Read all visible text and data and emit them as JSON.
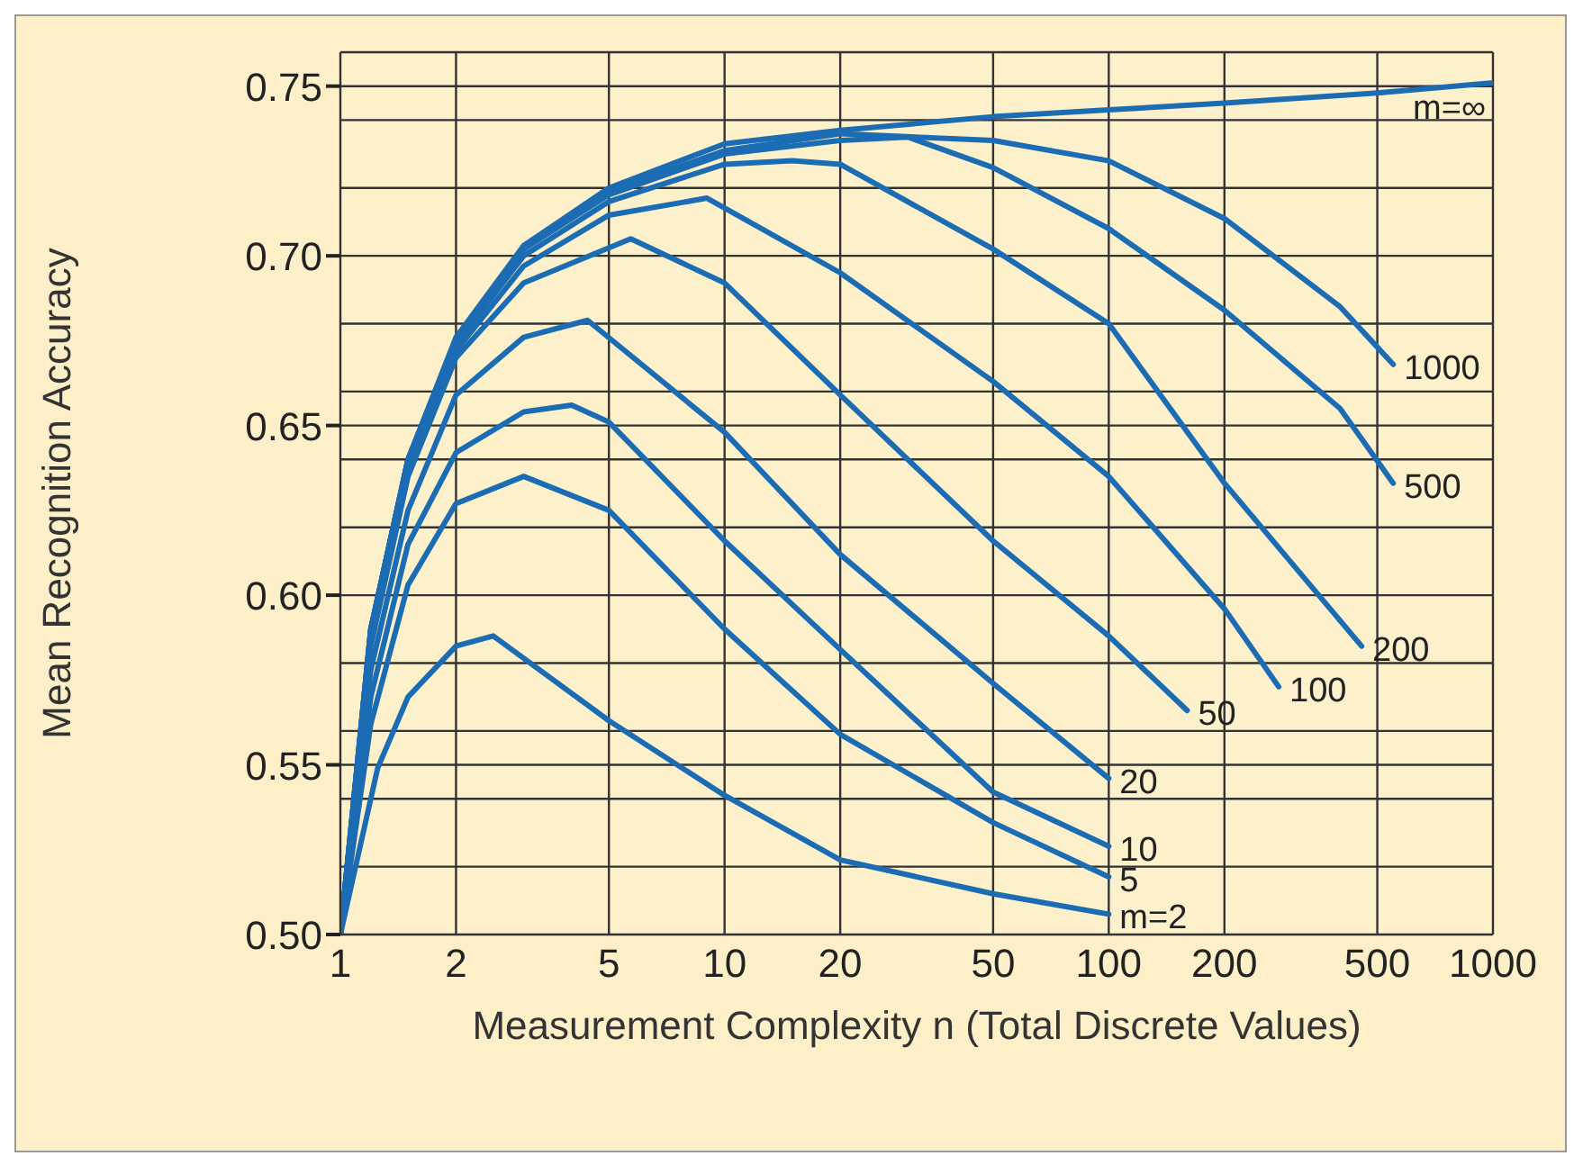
{
  "chart_data": {
    "type": "line",
    "xlabel": "Measurement Complexity n (Total Discrete Values)",
    "ylabel": "Mean Recognition Accuracy",
    "xlim": [
      1,
      1000
    ],
    "xticks": [
      1,
      2,
      5,
      10,
      20,
      50,
      100,
      200,
      500,
      1000
    ],
    "ylim": [
      0.5,
      0.76
    ],
    "yticks": [
      {
        "value": 0.5,
        "label": "0.50"
      },
      {
        "value": 0.52,
        "label": null
      },
      {
        "value": 0.54,
        "label": null
      },
      0.55,
      {
        "value": 0.56,
        "label": null
      },
      {
        "value": 0.58,
        "label": null
      },
      {
        "value": 0.6,
        "label": "0.60"
      },
      {
        "value": 0.62,
        "label": null
      },
      {
        "value": 0.64,
        "label": null
      },
      0.65,
      {
        "value": 0.66,
        "label": null
      },
      {
        "value": 0.68,
        "label": null
      },
      {
        "value": 0.7,
        "label": "0.70"
      },
      {
        "value": 0.72,
        "label": null
      },
      {
        "value": 0.74,
        "label": null
      },
      0.75,
      {
        "value": 0.76,
        "label": null
      }
    ],
    "log": "x",
    "grid": true,
    "legend": false,
    "marker": "none",
    "line_style": "solid",
    "series": [
      {
        "name": "m=∞",
        "color": "#1c6cb4",
        "x": [
          1,
          1.2,
          1.5,
          2,
          3,
          5,
          10,
          20,
          50,
          100,
          200,
          500,
          1000
        ],
        "values": [
          0.5,
          0.59,
          0.64,
          0.676,
          0.703,
          0.72,
          0.733,
          0.737,
          0.741,
          0.743,
          0.745,
          0.748,
          0.751
        ]
      },
      {
        "name": "1000",
        "color": "#1c6cb4",
        "x": [
          1,
          1.2,
          1.5,
          2,
          3,
          5,
          10,
          20,
          50,
          100,
          200,
          400,
          550
        ],
        "values": [
          0.5,
          0.59,
          0.64,
          0.675,
          0.702,
          0.719,
          0.731,
          0.736,
          0.734,
          0.728,
          0.711,
          0.685,
          0.668
        ]
      },
      {
        "name": "500",
        "color": "#1c6cb4",
        "x": [
          1,
          1.2,
          1.5,
          2,
          3,
          5,
          10,
          20,
          30,
          50,
          100,
          200,
          400,
          550
        ],
        "values": [
          0.5,
          0.59,
          0.64,
          0.675,
          0.702,
          0.718,
          0.73,
          0.734,
          0.735,
          0.726,
          0.708,
          0.684,
          0.655,
          0.633
        ]
      },
      {
        "name": "200",
        "color": "#1c6cb4",
        "x": [
          1,
          1.2,
          1.5,
          2,
          3,
          5,
          10,
          15,
          20,
          50,
          100,
          200,
          455
        ],
        "values": [
          0.5,
          0.59,
          0.64,
          0.674,
          0.7,
          0.716,
          0.727,
          0.728,
          0.727,
          0.702,
          0.68,
          0.633,
          0.585
        ]
      },
      {
        "name": "100",
        "color": "#1c6cb4",
        "x": [
          1,
          1.2,
          1.5,
          2,
          3,
          5,
          9,
          20,
          50,
          100,
          200,
          277
        ],
        "values": [
          0.5,
          0.588,
          0.638,
          0.672,
          0.697,
          0.712,
          0.717,
          0.695,
          0.663,
          0.635,
          0.596,
          0.573
        ]
      },
      {
        "name": "50",
        "color": "#1c6cb4",
        "x": [
          1,
          1.2,
          1.5,
          2,
          3,
          5.7,
          10,
          20,
          50,
          100,
          160
        ],
        "values": [
          0.5,
          0.585,
          0.635,
          0.67,
          0.692,
          0.705,
          0.692,
          0.659,
          0.616,
          0.588,
          0.566
        ]
      },
      {
        "name": "20",
        "color": "#1c6cb4",
        "x": [
          1,
          1.2,
          1.5,
          2,
          3,
          4.4,
          10,
          20,
          50,
          100
        ],
        "values": [
          0.5,
          0.578,
          0.625,
          0.659,
          0.676,
          0.681,
          0.648,
          0.612,
          0.574,
          0.546
        ]
      },
      {
        "name": "10",
        "color": "#1c6cb4",
        "x": [
          1,
          1.2,
          1.5,
          2,
          3,
          4,
          5,
          10,
          20,
          50,
          100
        ],
        "values": [
          0.5,
          0.57,
          0.615,
          0.642,
          0.654,
          0.656,
          0.651,
          0.616,
          0.584,
          0.542,
          0.526
        ]
      },
      {
        "name": "5",
        "color": "#1c6cb4",
        "x": [
          1,
          1.2,
          1.5,
          2,
          3,
          5,
          10,
          20,
          50,
          100
        ],
        "values": [
          0.5,
          0.562,
          0.603,
          0.627,
          0.635,
          0.625,
          0.59,
          0.559,
          0.533,
          0.517
        ]
      },
      {
        "name": "m=2",
        "color": "#1c6cb4",
        "x": [
          1,
          1.25,
          1.5,
          2,
          2.5,
          5,
          10,
          20,
          50,
          100
        ],
        "values": [
          0.5,
          0.549,
          0.57,
          0.585,
          0.588,
          0.563,
          0.541,
          0.522,
          0.512,
          0.506
        ]
      }
    ]
  }
}
